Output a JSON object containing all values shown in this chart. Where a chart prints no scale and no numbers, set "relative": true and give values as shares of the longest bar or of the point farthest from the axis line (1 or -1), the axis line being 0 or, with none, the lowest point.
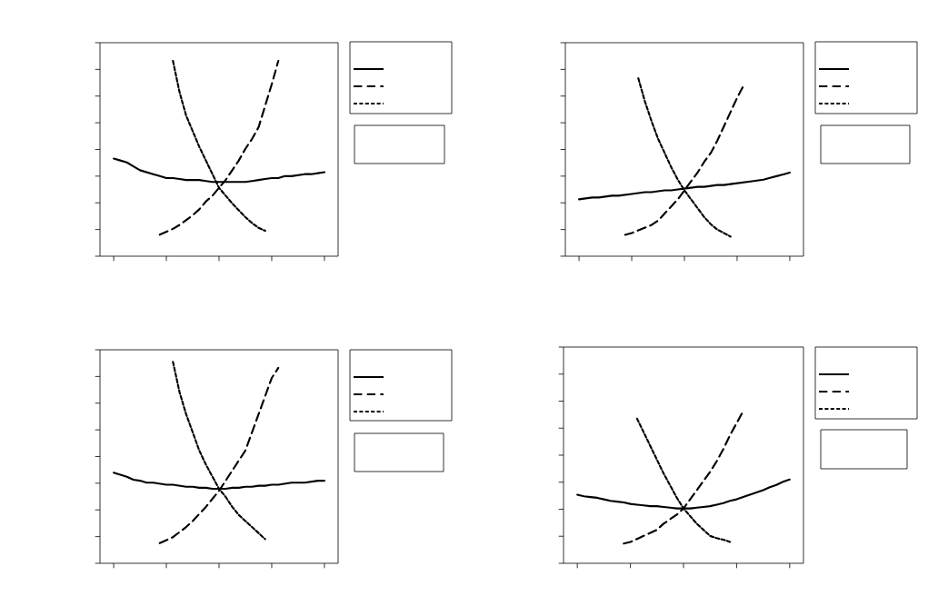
{
  "chart_data": [
    {
      "type": "line",
      "relative": true,
      "categories": [
        null,
        null,
        null,
        null,
        null,
        null,
        null,
        null,
        null,
        null,
        null,
        null,
        null,
        null,
        null,
        null,
        null,
        null,
        null,
        null,
        null,
        null,
        null,
        null,
        null,
        null,
        null,
        null,
        null,
        null,
        null,
        null,
        null
      ],
      "series": [
        {
          "color": "#000000",
          "line_style": "solid",
          "values": [
            0.5,
            0.49,
            0.48,
            0.46,
            0.44,
            0.43,
            0.42,
            0.41,
            0.4,
            0.4,
            0.395,
            0.39,
            0.39,
            0.39,
            0.385,
            0.38,
            0.38,
            0.38,
            0.38,
            0.38,
            0.38,
            0.385,
            0.39,
            0.395,
            0.4,
            0.4,
            0.41,
            0.41,
            0.415,
            0.42,
            0.42,
            0.425,
            0.43
          ]
        },
        {
          "color": "#000000",
          "line_style": "dashed",
          "values": [
            null,
            null,
            null,
            null,
            null,
            null,
            null,
            0.11,
            0.125,
            0.14,
            0.16,
            0.185,
            0.21,
            0.24,
            0.28,
            0.31,
            0.35,
            0.39,
            0.44,
            0.49,
            0.55,
            0.6,
            0.66,
            0.77,
            0.88,
            1.0,
            null,
            null,
            null,
            null,
            null,
            null,
            null
          ]
        },
        {
          "color": "#000000",
          "line_style": "dotted",
          "values": [
            null,
            null,
            null,
            null,
            null,
            null,
            null,
            null,
            null,
            1.0,
            0.84,
            0.72,
            0.64,
            0.56,
            0.49,
            0.42,
            0.35,
            0.31,
            0.27,
            0.235,
            0.2,
            0.17,
            0.145,
            0.13,
            null,
            null,
            null,
            null,
            null,
            null,
            null,
            null,
            null
          ]
        }
      ]
    },
    {
      "type": "line",
      "relative": true,
      "categories": [
        null,
        null,
        null,
        null,
        null,
        null,
        null,
        null,
        null,
        null,
        null,
        null,
        null,
        null,
        null,
        null,
        null,
        null,
        null,
        null,
        null,
        null,
        null,
        null,
        null,
        null,
        null,
        null,
        null,
        null,
        null,
        null,
        null
      ],
      "series": [
        {
          "color": "#000000",
          "line_style": "solid",
          "values": [
            0.32,
            0.325,
            0.33,
            0.33,
            0.335,
            0.34,
            0.34,
            0.345,
            0.35,
            0.355,
            0.36,
            0.36,
            0.365,
            0.37,
            0.37,
            0.375,
            0.38,
            0.385,
            0.39,
            0.39,
            0.395,
            0.4,
            0.4,
            0.405,
            0.41,
            0.415,
            0.42,
            0.425,
            0.43,
            0.44,
            0.45,
            0.46,
            0.47
          ]
        },
        {
          "color": "#000000",
          "line_style": "dashed",
          "values": [
            null,
            null,
            null,
            null,
            null,
            null,
            null,
            0.12,
            0.13,
            0.145,
            0.16,
            0.175,
            0.2,
            0.24,
            0.28,
            0.32,
            0.37,
            0.42,
            0.47,
            0.53,
            0.58,
            0.65,
            0.73,
            0.81,
            0.89,
            0.96,
            null,
            null,
            null,
            null,
            null,
            null,
            null
          ]
        },
        {
          "color": "#000000",
          "line_style": "dotted",
          "values": [
            null,
            null,
            null,
            null,
            null,
            null,
            null,
            null,
            null,
            1.0,
            0.87,
            0.76,
            0.66,
            0.58,
            0.5,
            0.43,
            0.37,
            0.32,
            0.27,
            0.22,
            0.18,
            0.15,
            0.13,
            0.11,
            null,
            null,
            null,
            null,
            null,
            null,
            null,
            null,
            null
          ]
        }
      ]
    },
    {
      "type": "line",
      "relative": true,
      "categories": [
        null,
        null,
        null,
        null,
        null,
        null,
        null,
        null,
        null,
        null,
        null,
        null,
        null,
        null,
        null,
        null,
        null,
        null,
        null,
        null,
        null,
        null,
        null,
        null,
        null,
        null,
        null,
        null,
        null,
        null,
        null,
        null,
        null
      ],
      "series": [
        {
          "color": "#000000",
          "line_style": "solid",
          "values": [
            0.45,
            0.44,
            0.43,
            0.415,
            0.41,
            0.4,
            0.4,
            0.395,
            0.39,
            0.39,
            0.385,
            0.38,
            0.38,
            0.375,
            0.375,
            0.37,
            0.37,
            0.37,
            0.375,
            0.375,
            0.38,
            0.38,
            0.385,
            0.385,
            0.39,
            0.39,
            0.395,
            0.4,
            0.4,
            0.4,
            0.405,
            0.41,
            0.41
          ]
        },
        {
          "color": "#000000",
          "line_style": "dashed",
          "values": [
            null,
            null,
            null,
            null,
            null,
            null,
            null,
            0.1,
            0.115,
            0.13,
            0.155,
            0.18,
            0.21,
            0.245,
            0.28,
            0.32,
            0.36,
            0.41,
            0.46,
            0.51,
            0.56,
            0.65,
            0.74,
            0.83,
            0.92,
            0.97,
            null,
            null,
            null,
            null,
            null,
            null,
            null
          ]
        },
        {
          "color": "#000000",
          "line_style": "dotted",
          "values": [
            null,
            null,
            null,
            null,
            null,
            null,
            null,
            null,
            null,
            1.0,
            0.85,
            0.74,
            0.65,
            0.56,
            0.49,
            0.43,
            0.37,
            0.33,
            0.28,
            0.24,
            0.21,
            0.18,
            0.15,
            0.12,
            null,
            null,
            null,
            null,
            null,
            null,
            null,
            null,
            null
          ]
        }
      ]
    },
    {
      "type": "line",
      "relative": true,
      "categories": [
        null,
        null,
        null,
        null,
        null,
        null,
        null,
        null,
        null,
        null,
        null,
        null,
        null,
        null,
        null,
        null,
        null,
        null,
        null,
        null,
        null,
        null,
        null,
        null,
        null,
        null,
        null,
        null,
        null,
        null,
        null,
        null,
        null
      ],
      "series": [
        {
          "color": "#000000",
          "line_style": "solid",
          "values": [
            0.45,
            0.44,
            0.435,
            0.43,
            0.42,
            0.41,
            0.405,
            0.4,
            0.39,
            0.385,
            0.38,
            0.375,
            0.375,
            0.37,
            0.365,
            0.36,
            0.36,
            0.36,
            0.365,
            0.37,
            0.375,
            0.385,
            0.395,
            0.41,
            0.42,
            0.435,
            0.45,
            0.465,
            0.48,
            0.5,
            0.515,
            0.535,
            0.55
          ]
        },
        {
          "color": "#000000",
          "line_style": "dashed",
          "values": [
            null,
            null,
            null,
            null,
            null,
            null,
            null,
            0.13,
            0.14,
            0.16,
            0.18,
            0.2,
            0.22,
            0.26,
            0.29,
            0.32,
            0.36,
            0.42,
            0.48,
            0.54,
            0.6,
            0.67,
            0.75,
            0.84,
            0.92,
            1.0,
            null,
            null,
            null,
            null,
            null,
            null,
            null
          ]
        },
        {
          "color": "#000000",
          "line_style": "dotted",
          "values": [
            null,
            null,
            null,
            null,
            null,
            null,
            null,
            null,
            null,
            0.95,
            0.86,
            0.77,
            0.68,
            0.59,
            0.51,
            0.43,
            0.36,
            0.31,
            0.26,
            0.22,
            0.18,
            0.165,
            0.155,
            0.14,
            null,
            null,
            null,
            null,
            null,
            null,
            null,
            null,
            null
          ]
        }
      ]
    }
  ]
}
